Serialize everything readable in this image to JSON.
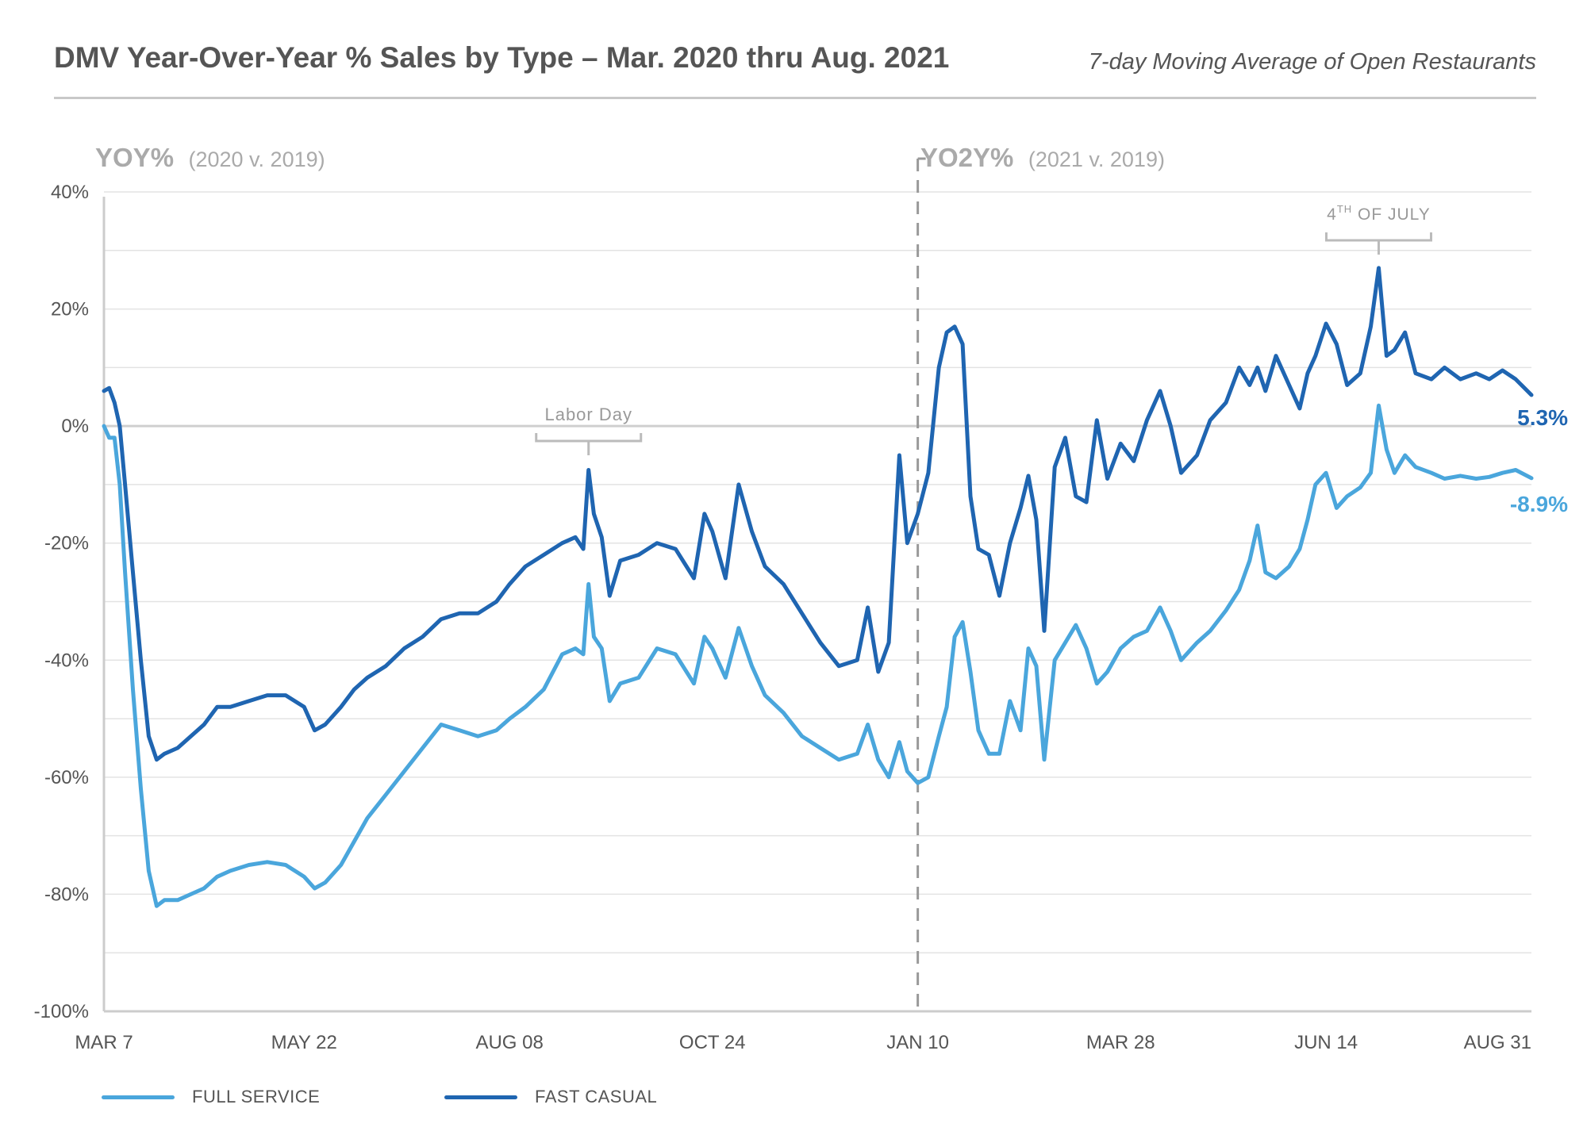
{
  "title": "DMV Year-Over-Year % Sales by Type – Mar. 2020 thru Aug. 2021",
  "subtitle": "7-day Moving Average of Open Restaurants",
  "sections": {
    "left": {
      "main": "YOY%",
      "paren": "(2020 v. 2019)"
    },
    "right": {
      "main": "YO2Y%",
      "paren": "(2021 v. 2019)"
    }
  },
  "colors": {
    "full_service": "#4aa6dc",
    "fast_casual": "#1f65b1",
    "annotation": "#aaaaaa",
    "text": "#555555",
    "grid": "#e3e3e3"
  },
  "chart_data": {
    "type": "line",
    "title": "DMV Year-Over-Year % Sales by Type – Mar. 2020 thru Aug. 2021",
    "subtitle": "7-day Moving Average of Open Restaurants",
    "x_tick_labels": [
      "MAR 7",
      "MAY 22",
      "AUG 08",
      "OCT 24",
      "JAN 10",
      "MAR 28",
      "JUN 14",
      "AUG 31"
    ],
    "y_tick_labels": [
      "40%",
      "20%",
      "0%",
      "-20%",
      "-40%",
      "-60%",
      "-80%",
      "-100%"
    ],
    "ylim": [
      -100,
      40
    ],
    "grid": "horizontal",
    "legend_position": "bottom-left",
    "divider_label": "JAN 10",
    "annotations": [
      {
        "label": "Labor Day",
        "x": "SEP 07"
      },
      {
        "label_main": "4",
        "label_sup": "TH",
        "label_rest": " OF JULY",
        "x": "JUL 04"
      }
    ],
    "end_labels": {
      "fast_casual": "5.3%",
      "full_service": "-8.9%"
    },
    "series": [
      {
        "name": "FULL SERVICE",
        "key": "full_service",
        "color": "#4aa6dc",
        "points": [
          [
            "MAR 7",
            0
          ],
          [
            "MAR 9",
            -2
          ],
          [
            "MAR 11",
            -2
          ],
          [
            "MAR 13",
            -10
          ],
          [
            "MAR 15",
            -25
          ],
          [
            "MAR 18",
            -45
          ],
          [
            "MAR 21",
            -62
          ],
          [
            "MAR 24",
            -76
          ],
          [
            "MAR 27",
            -82
          ],
          [
            "MAR 30",
            -81
          ],
          [
            "APR 4",
            -81
          ],
          [
            "APR 9",
            -80
          ],
          [
            "APR 14",
            -79
          ],
          [
            "APR 19",
            -77
          ],
          [
            "APR 24",
            -76
          ],
          [
            "MAY 1",
            -75
          ],
          [
            "MAY 8",
            -74.5
          ],
          [
            "MAY 15",
            -75
          ],
          [
            "MAY 22",
            -77
          ],
          [
            "MAY 26",
            -79
          ],
          [
            "MAY 30",
            -78
          ],
          [
            "JUN 5",
            -75
          ],
          [
            "JUN 10",
            -71
          ],
          [
            "JUN 15",
            -67
          ],
          [
            "JUN 22",
            -63
          ],
          [
            "JUN 29",
            -59
          ],
          [
            "JUL 6",
            -55
          ],
          [
            "JUL 13",
            -51
          ],
          [
            "JUL 20",
            -52
          ],
          [
            "JUL 27",
            -53
          ],
          [
            "AUG 3",
            -52
          ],
          [
            "AUG 8",
            -50
          ],
          [
            "AUG 14",
            -48
          ],
          [
            "AUG 21",
            -45
          ],
          [
            "AUG 28",
            -39
          ],
          [
            "SEP 2",
            -38
          ],
          [
            "SEP 5",
            -39
          ],
          [
            "SEP 7",
            -27
          ],
          [
            "SEP 9",
            -36
          ],
          [
            "SEP 12",
            -38
          ],
          [
            "SEP 15",
            -47
          ],
          [
            "SEP 19",
            -44
          ],
          [
            "SEP 26",
            -43
          ],
          [
            "OCT 3",
            -38
          ],
          [
            "OCT 10",
            -39
          ],
          [
            "OCT 17",
            -44
          ],
          [
            "OCT 21",
            -36
          ],
          [
            "OCT 24",
            -38
          ],
          [
            "OCT 29",
            -43
          ],
          [
            "NOV 3",
            -34.5
          ],
          [
            "NOV 8",
            -41
          ],
          [
            "NOV 13",
            -46
          ],
          [
            "NOV 20",
            -49
          ],
          [
            "NOV 27",
            -53
          ],
          [
            "DEC 4",
            -55
          ],
          [
            "DEC 11",
            -57
          ],
          [
            "DEC 18",
            -56
          ],
          [
            "DEC 22",
            -51
          ],
          [
            "DEC 26",
            -57
          ],
          [
            "DEC 30",
            -60
          ],
          [
            "JAN 3",
            -54
          ],
          [
            "JAN 6",
            -59
          ],
          [
            "JAN 10",
            -61
          ],
          [
            "JAN 14",
            -60
          ],
          [
            "JAN 18",
            -53
          ],
          [
            "JAN 21",
            -48
          ],
          [
            "JAN 24",
            -36
          ],
          [
            "JAN 27",
            -33.5
          ],
          [
            "JAN 30",
            -42
          ],
          [
            "FEB 2",
            -52
          ],
          [
            "FEB 6",
            -56
          ],
          [
            "FEB 10",
            -56
          ],
          [
            "FEB 14",
            -47
          ],
          [
            "FEB 18",
            -52
          ],
          [
            "FEB 21",
            -38
          ],
          [
            "FEB 24",
            -41
          ],
          [
            "FEB 27",
            -57
          ],
          [
            "MAR 3",
            -40
          ],
          [
            "MAR 7",
            -37
          ],
          [
            "MAR 11",
            -34
          ],
          [
            "MAR 15",
            -38
          ],
          [
            "MAR 19",
            -44
          ],
          [
            "MAR 23",
            -42
          ],
          [
            "MAR 28",
            -38
          ],
          [
            "APR 2",
            -36
          ],
          [
            "APR 7",
            -35
          ],
          [
            "APR 12",
            -31
          ],
          [
            "APR 16",
            -35
          ],
          [
            "APR 20",
            -40
          ],
          [
            "APR 26",
            -37
          ],
          [
            "MAY 1",
            -35
          ],
          [
            "MAY 7",
            -31.5
          ],
          [
            "MAY 12",
            -28
          ],
          [
            "MAY 16",
            -23
          ],
          [
            "MAY 19",
            -17
          ],
          [
            "MAY 22",
            -25
          ],
          [
            "MAY 26",
            -26
          ],
          [
            "MAY 31",
            -24
          ],
          [
            "JUN 4",
            -21
          ],
          [
            "JUN 7",
            -16
          ],
          [
            "JUN 10",
            -10
          ],
          [
            "JUN 14",
            -8
          ],
          [
            "JUN 18",
            -14
          ],
          [
            "JUN 22",
            -12
          ],
          [
            "JUN 27",
            -10.5
          ],
          [
            "JUL 1",
            -8
          ],
          [
            "JUL 4",
            3.5
          ],
          [
            "JUL 7",
            -4
          ],
          [
            "JUL 10",
            -8
          ],
          [
            "JUL 14",
            -5
          ],
          [
            "JUL 18",
            -7
          ],
          [
            "JUL 24",
            -8
          ],
          [
            "JUL 29",
            -9
          ],
          [
            "AUG 4",
            -8.5
          ],
          [
            "AUG 10",
            -9
          ],
          [
            "AUG 15",
            -8.7
          ],
          [
            "AUG 20",
            -8
          ],
          [
            "AUG 25",
            -7.5
          ],
          [
            "AUG 31",
            -8.9
          ]
        ]
      },
      {
        "name": "FAST CASUAL",
        "key": "fast_casual",
        "color": "#1f65b1",
        "points": [
          [
            "MAR 7",
            6
          ],
          [
            "MAR 9",
            6.5
          ],
          [
            "MAR 11",
            4
          ],
          [
            "MAR 13",
            0
          ],
          [
            "MAR 15",
            -10
          ],
          [
            "MAR 18",
            -25
          ],
          [
            "MAR 21",
            -40
          ],
          [
            "MAR 24",
            -53
          ],
          [
            "MAR 27",
            -57
          ],
          [
            "MAR 30",
            -56
          ],
          [
            "APR 4",
            -55
          ],
          [
            "APR 9",
            -53
          ],
          [
            "APR 14",
            -51
          ],
          [
            "APR 19",
            -48
          ],
          [
            "APR 24",
            -48
          ],
          [
            "MAY 1",
            -47
          ],
          [
            "MAY 8",
            -46
          ],
          [
            "MAY 15",
            -46
          ],
          [
            "MAY 22",
            -48
          ],
          [
            "MAY 26",
            -52
          ],
          [
            "MAY 30",
            -51
          ],
          [
            "JUN 5",
            -48
          ],
          [
            "JUN 10",
            -45
          ],
          [
            "JUN 15",
            -43
          ],
          [
            "JUN 22",
            -41
          ],
          [
            "JUN 29",
            -38
          ],
          [
            "JUL 6",
            -36
          ],
          [
            "JUL 13",
            -33
          ],
          [
            "JUL 20",
            -32
          ],
          [
            "JUL 27",
            -32
          ],
          [
            "AUG 3",
            -30
          ],
          [
            "AUG 8",
            -27
          ],
          [
            "AUG 14",
            -24
          ],
          [
            "AUG 21",
            -22
          ],
          [
            "AUG 28",
            -20
          ],
          [
            "SEP 2",
            -19
          ],
          [
            "SEP 5",
            -21
          ],
          [
            "SEP 7",
            -7.5
          ],
          [
            "SEP 9",
            -15
          ],
          [
            "SEP 12",
            -19
          ],
          [
            "SEP 15",
            -29
          ],
          [
            "SEP 19",
            -23
          ],
          [
            "SEP 26",
            -22
          ],
          [
            "OCT 3",
            -20
          ],
          [
            "OCT 10",
            -21
          ],
          [
            "OCT 17",
            -26
          ],
          [
            "OCT 21",
            -15
          ],
          [
            "OCT 24",
            -18
          ],
          [
            "OCT 29",
            -26
          ],
          [
            "NOV 3",
            -10
          ],
          [
            "NOV 8",
            -18
          ],
          [
            "NOV 13",
            -24
          ],
          [
            "NOV 20",
            -27
          ],
          [
            "NOV 27",
            -32
          ],
          [
            "DEC 4",
            -37
          ],
          [
            "DEC 11",
            -41
          ],
          [
            "DEC 18",
            -40
          ],
          [
            "DEC 22",
            -31
          ],
          [
            "DEC 26",
            -42
          ],
          [
            "DEC 30",
            -37
          ],
          [
            "JAN 3",
            -5
          ],
          [
            "JAN 6",
            -20
          ],
          [
            "JAN 10",
            -15
          ],
          [
            "JAN 14",
            -8
          ],
          [
            "JAN 18",
            10
          ],
          [
            "JAN 21",
            16
          ],
          [
            "JAN 24",
            17
          ],
          [
            "JAN 27",
            14
          ],
          [
            "JAN 30",
            -12
          ],
          [
            "FEB 2",
            -21
          ],
          [
            "FEB 6",
            -22
          ],
          [
            "FEB 10",
            -29
          ],
          [
            "FEB 14",
            -20
          ],
          [
            "FEB 18",
            -14
          ],
          [
            "FEB 21",
            -8.5
          ],
          [
            "FEB 24",
            -16
          ],
          [
            "FEB 27",
            -35
          ],
          [
            "MAR 3",
            -7
          ],
          [
            "MAR 7",
            -2
          ],
          [
            "MAR 11",
            -12
          ],
          [
            "MAR 15",
            -13
          ],
          [
            "MAR 19",
            1
          ],
          [
            "MAR 23",
            -9
          ],
          [
            "MAR 28",
            -3
          ],
          [
            "APR 2",
            -6
          ],
          [
            "APR 7",
            1
          ],
          [
            "APR 12",
            6
          ],
          [
            "APR 16",
            0
          ],
          [
            "APR 20",
            -8
          ],
          [
            "APR 26",
            -5
          ],
          [
            "MAY 1",
            1
          ],
          [
            "MAY 7",
            4
          ],
          [
            "MAY 12",
            10
          ],
          [
            "MAY 16",
            7
          ],
          [
            "MAY 19",
            10
          ],
          [
            "MAY 22",
            6
          ],
          [
            "MAY 26",
            12
          ],
          [
            "MAY 31",
            7
          ],
          [
            "JUN 4",
            3
          ],
          [
            "JUN 7",
            9
          ],
          [
            "JUN 10",
            12
          ],
          [
            "JUN 14",
            17.5
          ],
          [
            "JUN 18",
            14
          ],
          [
            "JUN 22",
            7
          ],
          [
            "JUN 27",
            9
          ],
          [
            "JUL 1",
            17
          ],
          [
            "JUL 4",
            27
          ],
          [
            "JUL 7",
            12
          ],
          [
            "JUL 10",
            13
          ],
          [
            "JUL 14",
            16
          ],
          [
            "JUL 18",
            9
          ],
          [
            "JUL 24",
            8
          ],
          [
            "JUL 29",
            10
          ],
          [
            "AUG 4",
            8
          ],
          [
            "AUG 10",
            9
          ],
          [
            "AUG 15",
            8
          ],
          [
            "AUG 20",
            9.5
          ],
          [
            "AUG 25",
            8
          ],
          [
            "AUG 31",
            5.3
          ]
        ]
      }
    ]
  },
  "legend": [
    {
      "key": "full_service",
      "label": "FULL SERVICE"
    },
    {
      "key": "fast_casual",
      "label": "FAST CASUAL"
    }
  ]
}
